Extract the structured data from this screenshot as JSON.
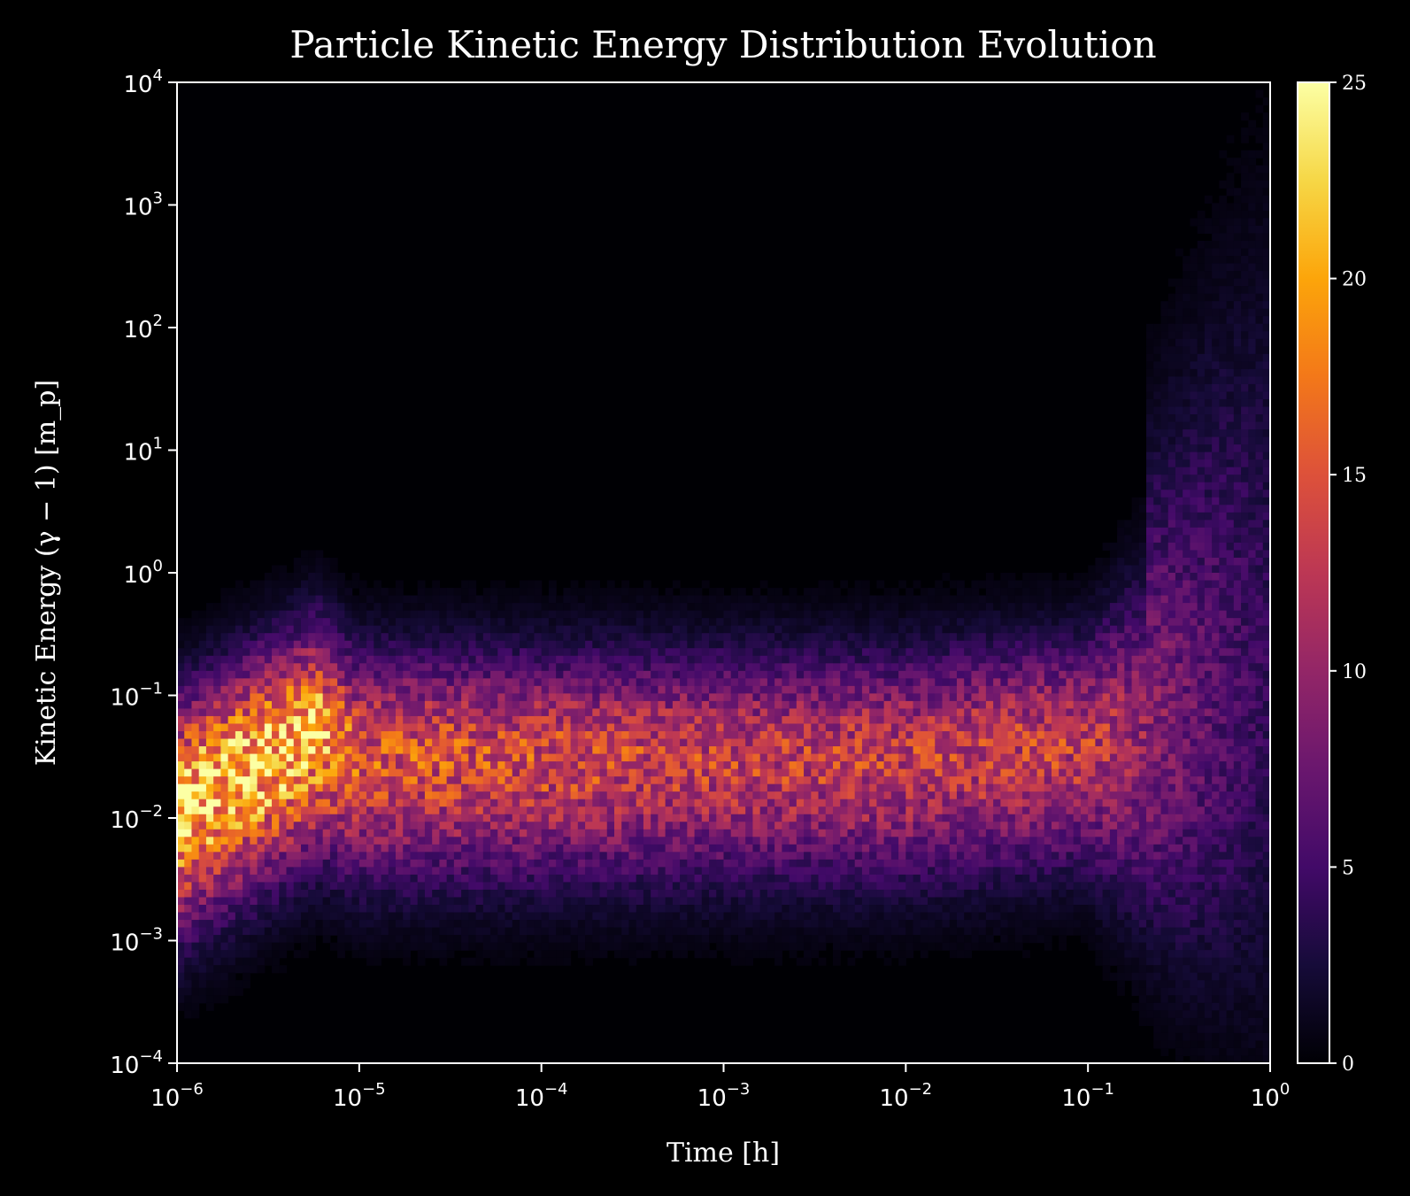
{
  "chart_data": {
    "type": "heatmap",
    "title": "Particle Kinetic Energy Distribution Evolution",
    "xlabel": "Time [h]",
    "ylabel": "Kinetic Energy (γ − 1) [m_p]",
    "xscale": "log",
    "yscale": "log",
    "xlim": [
      1e-06,
      1
    ],
    "ylim": [
      0.0001,
      10000
    ],
    "x_ticks": [
      {
        "value": 1e-06,
        "base": "10",
        "exp": "−6"
      },
      {
        "value": 1e-05,
        "base": "10",
        "exp": "−5"
      },
      {
        "value": 0.0001,
        "base": "10",
        "exp": "−4"
      },
      {
        "value": 0.001,
        "base": "10",
        "exp": "−3"
      },
      {
        "value": 0.01,
        "base": "10",
        "exp": "−2"
      },
      {
        "value": 0.1,
        "base": "10",
        "exp": "−1"
      },
      {
        "value": 1,
        "base": "10",
        "exp": "0"
      }
    ],
    "y_ticks": [
      {
        "value": 0.0001,
        "base": "10",
        "exp": "−4"
      },
      {
        "value": 0.001,
        "base": "10",
        "exp": "−3"
      },
      {
        "value": 0.01,
        "base": "10",
        "exp": "−2"
      },
      {
        "value": 0.1,
        "base": "10",
        "exp": "−1"
      },
      {
        "value": 1,
        "base": "10",
        "exp": "0"
      },
      {
        "value": 10,
        "base": "10",
        "exp": "1"
      },
      {
        "value": 100,
        "base": "10",
        "exp": "2"
      },
      {
        "value": 1000,
        "base": "10",
        "exp": "3"
      },
      {
        "value": 10000,
        "base": "10",
        "exp": "4"
      }
    ],
    "colorbar": {
      "colormap": "inferno",
      "range": [
        0,
        25
      ],
      "ticks": [
        0,
        5,
        10,
        15,
        20,
        25
      ],
      "tick_labels": [
        "0",
        "5",
        "10",
        "15",
        "20",
        "25"
      ]
    },
    "density_ridge": [
      {
        "t": 1e-06,
        "energy_median": 0.012,
        "peak_count": 22
      },
      {
        "t": 3e-06,
        "energy_median": 0.03,
        "peak_count": 22
      },
      {
        "t": 6e-06,
        "energy_median": 0.05,
        "peak_count": 20
      },
      {
        "t": 1e-05,
        "energy_median": 0.03,
        "peak_count": 15
      },
      {
        "t": 0.0001,
        "energy_median": 0.03,
        "peak_count": 14
      },
      {
        "t": 0.001,
        "energy_median": 0.03,
        "peak_count": 13
      },
      {
        "t": 0.01,
        "energy_median": 0.03,
        "peak_count": 13
      },
      {
        "t": 0.1,
        "energy_median": 0.04,
        "peak_count": 13
      },
      {
        "t": 0.3,
        "energy_median": 0.05,
        "peak_count": 8
      },
      {
        "t": 1,
        "energy_median": 0.1,
        "peak_count": 4
      }
    ],
    "grid": false,
    "background": "#000000",
    "foreground": "#ffffff"
  }
}
